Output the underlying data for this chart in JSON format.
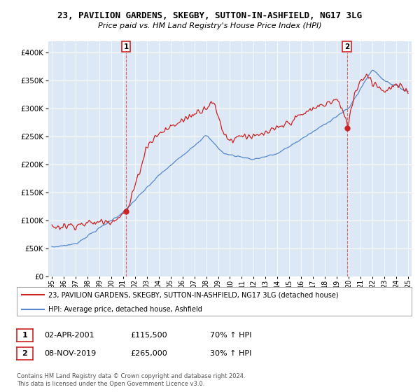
{
  "title": "23, PAVILION GARDENS, SKEGBY, SUTTON-IN-ASHFIELD, NG17 3LG",
  "subtitle": "Price paid vs. HM Land Registry's House Price Index (HPI)",
  "red_label": "23, PAVILION GARDENS, SKEGBY, SUTTON-IN-ASHFIELD, NG17 3LG (detached house)",
  "blue_label": "HPI: Average price, detached house, Ashfield",
  "point1_x": 2001.25,
  "point1_y": 115500,
  "point1_label": "1",
  "point1_date": "02-APR-2001",
  "point1_price": "£115,500",
  "point1_hpi": "70% ↑ HPI",
  "point2_x": 2019.85,
  "point2_y": 265000,
  "point2_label": "2",
  "point2_date": "08-NOV-2019",
  "point2_price": "£265,000",
  "point2_hpi": "30% ↑ HPI",
  "footer": "Contains HM Land Registry data © Crown copyright and database right 2024.\nThis data is licensed under the Open Government Licence v3.0.",
  "ylim": [
    0,
    420000
  ],
  "xlim_start": 1994.7,
  "xlim_end": 2025.3,
  "bg_color": "#ffffff",
  "plot_bg": "#dce8f5",
  "red_color": "#cc2222",
  "blue_color": "#5588cc",
  "grid_color": "#ffffff",
  "dashed_line_color": "#dd4444"
}
